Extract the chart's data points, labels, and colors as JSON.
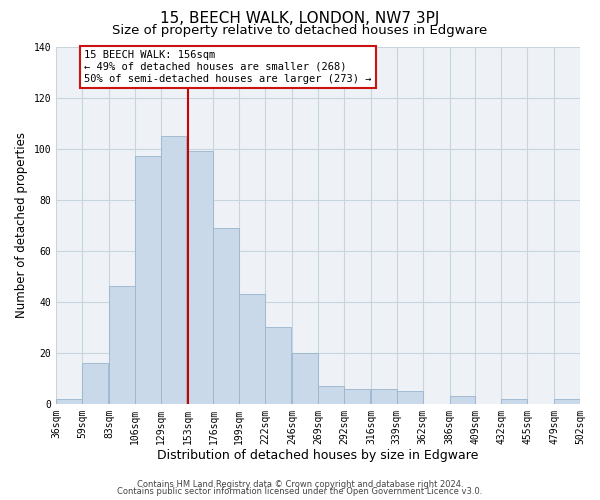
{
  "title": "15, BEECH WALK, LONDON, NW7 3PJ",
  "subtitle": "Size of property relative to detached houses in Edgware",
  "xlabel": "Distribution of detached houses by size in Edgware",
  "ylabel": "Number of detached properties",
  "bar_left_edges": [
    36,
    59,
    83,
    106,
    129,
    153,
    176,
    199,
    222,
    246,
    269,
    292,
    316,
    339,
    362,
    386,
    409,
    432,
    455,
    479
  ],
  "bar_heights": [
    2,
    16,
    46,
    97,
    105,
    99,
    69,
    43,
    30,
    20,
    7,
    6,
    6,
    5,
    0,
    3,
    0,
    2,
    0,
    2
  ],
  "bar_color": "#c9d9ea",
  "bar_edgecolor": "#9ab4cc",
  "vline_x": 153,
  "vline_color": "#cc0000",
  "xlim": [
    36,
    502
  ],
  "ylim": [
    0,
    140
  ],
  "yticks": [
    0,
    20,
    40,
    60,
    80,
    100,
    120,
    140
  ],
  "xtick_labels": [
    "36sqm",
    "59sqm",
    "83sqm",
    "106sqm",
    "129sqm",
    "153sqm",
    "176sqm",
    "199sqm",
    "222sqm",
    "246sqm",
    "269sqm",
    "292sqm",
    "316sqm",
    "339sqm",
    "362sqm",
    "386sqm",
    "409sqm",
    "432sqm",
    "455sqm",
    "479sqm",
    "502sqm"
  ],
  "xtick_positions": [
    36,
    59,
    83,
    106,
    129,
    153,
    176,
    199,
    222,
    246,
    269,
    292,
    316,
    339,
    362,
    386,
    409,
    432,
    455,
    479,
    502
  ],
  "annotation_line1": "15 BEECH WALK: 156sqm",
  "annotation_line2": "← 49% of detached houses are smaller (268)",
  "annotation_line3": "50% of semi-detached houses are larger (273) →",
  "grid_color": "#c8d4de",
  "background_color": "#eef2f6",
  "footnote1": "Contains HM Land Registry data © Crown copyright and database right 2024.",
  "footnote2": "Contains public sector information licensed under the Open Government Licence v3.0.",
  "title_fontsize": 11,
  "subtitle_fontsize": 9.5,
  "tick_fontsize": 7,
  "ylabel_fontsize": 8.5,
  "xlabel_fontsize": 9,
  "footnote_fontsize": 6,
  "annot_fontsize": 7.5
}
